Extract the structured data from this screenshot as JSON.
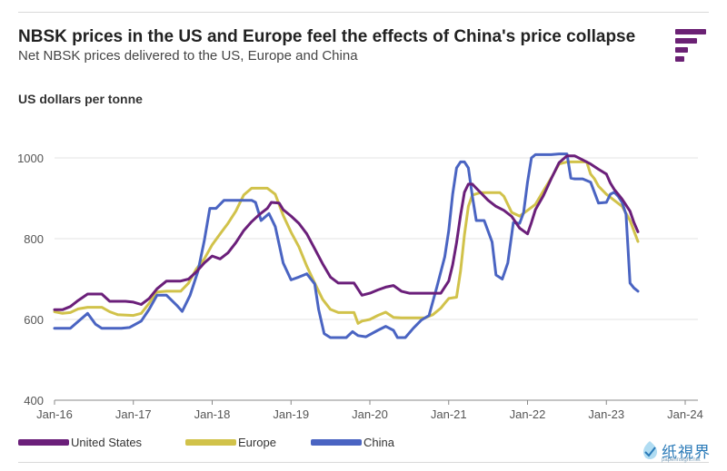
{
  "title": "NBSK prices in the US and Europe feel the effects of China's price collapse",
  "subtitle": "Net NBSK prices delivered to the US, Europe and China",
  "logo": {
    "icon": "brand-logo-icon",
    "color": "#6b2174"
  },
  "watermark": {
    "text": "纸視界",
    "subtext": "paperinsight.net",
    "icon": "watermark-logo-icon"
  },
  "chart_data": {
    "type": "line",
    "title": "NBSK prices in the US and Europe feel the effects of China's price collapse",
    "ylabel": "US dollars per tonne",
    "xlabel": "",
    "ylim": [
      400,
      1000
    ],
    "xlim": [
      2016.0,
      2024.0
    ],
    "grid": "horizontal",
    "yticks": [
      400,
      600,
      800,
      1000
    ],
    "xticks": [
      {
        "label": "Jan-16",
        "x": 2016
      },
      {
        "label": "Jan-17",
        "x": 2017
      },
      {
        "label": "Jan-18",
        "x": 2018
      },
      {
        "label": "Jan-19",
        "x": 2019
      },
      {
        "label": "Jan-20",
        "x": 2020
      },
      {
        "label": "Jan-21",
        "x": 2021
      },
      {
        "label": "Jan-22",
        "x": 2022
      },
      {
        "label": "Jan-23",
        "x": 2023
      },
      {
        "label": "Jan-24",
        "x": 2024
      }
    ],
    "legend_position": "bottom",
    "series": [
      {
        "name": "United States",
        "color": "#6b1f7a",
        "points": [
          [
            2016.0,
            624
          ],
          [
            2016.1,
            624
          ],
          [
            2016.2,
            632
          ],
          [
            2016.3,
            647
          ],
          [
            2016.42,
            663
          ],
          [
            2016.6,
            663
          ],
          [
            2016.7,
            645
          ],
          [
            2016.9,
            645
          ],
          [
            2017.0,
            643
          ],
          [
            2017.1,
            637
          ],
          [
            2017.2,
            652
          ],
          [
            2017.3,
            676
          ],
          [
            2017.42,
            695
          ],
          [
            2017.6,
            695
          ],
          [
            2017.7,
            700
          ],
          [
            2017.8,
            718
          ],
          [
            2017.9,
            740
          ],
          [
            2018.0,
            757
          ],
          [
            2018.1,
            750
          ],
          [
            2018.2,
            765
          ],
          [
            2018.3,
            790
          ],
          [
            2018.4,
            820
          ],
          [
            2018.5,
            842
          ],
          [
            2018.6,
            860
          ],
          [
            2018.7,
            875
          ],
          [
            2018.75,
            890
          ],
          [
            2018.85,
            888
          ],
          [
            2018.9,
            872
          ],
          [
            2019.0,
            856
          ],
          [
            2019.1,
            838
          ],
          [
            2019.2,
            812
          ],
          [
            2019.3,
            775
          ],
          [
            2019.4,
            738
          ],
          [
            2019.5,
            705
          ],
          [
            2019.6,
            690
          ],
          [
            2019.8,
            690
          ],
          [
            2019.9,
            660
          ],
          [
            2020.0,
            665
          ],
          [
            2020.1,
            673
          ],
          [
            2020.2,
            680
          ],
          [
            2020.3,
            684
          ],
          [
            2020.4,
            670
          ],
          [
            2020.5,
            665
          ],
          [
            2020.75,
            665
          ],
          [
            2020.9,
            665
          ],
          [
            2020.95,
            680
          ],
          [
            2021.0,
            695
          ],
          [
            2021.05,
            735
          ],
          [
            2021.1,
            790
          ],
          [
            2021.15,
            858
          ],
          [
            2021.2,
            915
          ],
          [
            2021.25,
            935
          ],
          [
            2021.3,
            935
          ],
          [
            2021.35,
            925
          ],
          [
            2021.5,
            895
          ],
          [
            2021.6,
            880
          ],
          [
            2021.7,
            870
          ],
          [
            2021.8,
            855
          ],
          [
            2021.9,
            826
          ],
          [
            2022.0,
            812
          ],
          [
            2022.05,
            840
          ],
          [
            2022.1,
            872
          ],
          [
            2022.2,
            906
          ],
          [
            2022.3,
            948
          ],
          [
            2022.4,
            988
          ],
          [
            2022.5,
            1005
          ],
          [
            2022.6,
            1005
          ],
          [
            2022.7,
            995
          ],
          [
            2022.8,
            985
          ],
          [
            2022.9,
            972
          ],
          [
            2023.0,
            960
          ],
          [
            2023.05,
            938
          ],
          [
            2023.1,
            922
          ],
          [
            2023.15,
            910
          ],
          [
            2023.2,
            898
          ],
          [
            2023.3,
            868
          ],
          [
            2023.35,
            840
          ],
          [
            2023.4,
            817
          ]
        ]
      },
      {
        "name": "Europe",
        "color": "#d1c24a",
        "points": [
          [
            2016.0,
            619
          ],
          [
            2016.1,
            615
          ],
          [
            2016.2,
            617
          ],
          [
            2016.3,
            626
          ],
          [
            2016.42,
            630
          ],
          [
            2016.6,
            630
          ],
          [
            2016.7,
            619
          ],
          [
            2016.8,
            612
          ],
          [
            2017.0,
            610
          ],
          [
            2017.1,
            615
          ],
          [
            2017.2,
            640
          ],
          [
            2017.3,
            668
          ],
          [
            2017.42,
            670
          ],
          [
            2017.6,
            670
          ],
          [
            2017.7,
            690
          ],
          [
            2017.8,
            725
          ],
          [
            2017.9,
            750
          ],
          [
            2018.0,
            785
          ],
          [
            2018.1,
            812
          ],
          [
            2018.2,
            838
          ],
          [
            2018.3,
            868
          ],
          [
            2018.4,
            908
          ],
          [
            2018.5,
            925
          ],
          [
            2018.6,
            925
          ],
          [
            2018.7,
            925
          ],
          [
            2018.8,
            910
          ],
          [
            2018.9,
            858
          ],
          [
            2019.0,
            816
          ],
          [
            2019.1,
            780
          ],
          [
            2019.2,
            732
          ],
          [
            2019.3,
            690
          ],
          [
            2019.4,
            650
          ],
          [
            2019.5,
            625
          ],
          [
            2019.6,
            617
          ],
          [
            2019.8,
            617
          ],
          [
            2019.85,
            590
          ],
          [
            2019.9,
            596
          ],
          [
            2020.0,
            600
          ],
          [
            2020.1,
            610
          ],
          [
            2020.2,
            618
          ],
          [
            2020.3,
            605
          ],
          [
            2020.4,
            604
          ],
          [
            2020.7,
            604
          ],
          [
            2020.8,
            612
          ],
          [
            2020.9,
            628
          ],
          [
            2020.95,
            640
          ],
          [
            2021.0,
            652
          ],
          [
            2021.1,
            655
          ],
          [
            2021.15,
            720
          ],
          [
            2021.2,
            810
          ],
          [
            2021.25,
            880
          ],
          [
            2021.3,
            908
          ],
          [
            2021.4,
            914
          ],
          [
            2021.5,
            914
          ],
          [
            2021.65,
            914
          ],
          [
            2021.7,
            905
          ],
          [
            2021.8,
            865
          ],
          [
            2021.9,
            856
          ],
          [
            2022.0,
            870
          ],
          [
            2022.1,
            885
          ],
          [
            2022.2,
            918
          ],
          [
            2022.3,
            950
          ],
          [
            2022.4,
            985
          ],
          [
            2022.5,
            990
          ],
          [
            2022.65,
            990
          ],
          [
            2022.75,
            990
          ],
          [
            2022.8,
            960
          ],
          [
            2022.85,
            948
          ],
          [
            2022.9,
            930
          ],
          [
            2023.0,
            910
          ],
          [
            2023.1,
            895
          ],
          [
            2023.2,
            880
          ],
          [
            2023.3,
            845
          ],
          [
            2023.4,
            793
          ]
        ]
      },
      {
        "name": "China",
        "color": "#4a64c2",
        "points": [
          [
            2016.0,
            578
          ],
          [
            2016.2,
            578
          ],
          [
            2016.3,
            595
          ],
          [
            2016.42,
            615
          ],
          [
            2016.52,
            588
          ],
          [
            2016.6,
            578
          ],
          [
            2016.7,
            578
          ],
          [
            2016.85,
            578
          ],
          [
            2016.95,
            580
          ],
          [
            2017.1,
            596
          ],
          [
            2017.2,
            625
          ],
          [
            2017.3,
            660
          ],
          [
            2017.42,
            660
          ],
          [
            2017.55,
            635
          ],
          [
            2017.62,
            620
          ],
          [
            2017.72,
            660
          ],
          [
            2017.82,
            720
          ],
          [
            2017.9,
            795
          ],
          [
            2017.97,
            875
          ],
          [
            2018.05,
            875
          ],
          [
            2018.15,
            895
          ],
          [
            2018.25,
            895
          ],
          [
            2018.5,
            895
          ],
          [
            2018.55,
            890
          ],
          [
            2018.62,
            845
          ],
          [
            2018.72,
            862
          ],
          [
            2018.8,
            830
          ],
          [
            2018.9,
            740
          ],
          [
            2019.0,
            698
          ],
          [
            2019.1,
            705
          ],
          [
            2019.2,
            713
          ],
          [
            2019.3,
            688
          ],
          [
            2019.35,
            625
          ],
          [
            2019.42,
            565
          ],
          [
            2019.5,
            555
          ],
          [
            2019.7,
            555
          ],
          [
            2019.78,
            570
          ],
          [
            2019.85,
            560
          ],
          [
            2019.95,
            557
          ],
          [
            2020.1,
            573
          ],
          [
            2020.2,
            583
          ],
          [
            2020.3,
            573
          ],
          [
            2020.35,
            555
          ],
          [
            2020.45,
            555
          ],
          [
            2020.55,
            578
          ],
          [
            2020.65,
            598
          ],
          [
            2020.75,
            610
          ],
          [
            2020.85,
            680
          ],
          [
            2020.95,
            755
          ],
          [
            2021.0,
            820
          ],
          [
            2021.05,
            910
          ],
          [
            2021.1,
            975
          ],
          [
            2021.15,
            990
          ],
          [
            2021.2,
            990
          ],
          [
            2021.25,
            975
          ],
          [
            2021.3,
            905
          ],
          [
            2021.35,
            845
          ],
          [
            2021.45,
            845
          ],
          [
            2021.55,
            792
          ],
          [
            2021.6,
            710
          ],
          [
            2021.68,
            700
          ],
          [
            2021.75,
            740
          ],
          [
            2021.82,
            840
          ],
          [
            2021.9,
            838
          ],
          [
            2021.95,
            865
          ],
          [
            2022.0,
            940
          ],
          [
            2022.05,
            1000
          ],
          [
            2022.1,
            1008
          ],
          [
            2022.3,
            1008
          ],
          [
            2022.4,
            1010
          ],
          [
            2022.5,
            1010
          ],
          [
            2022.55,
            950
          ],
          [
            2022.6,
            948
          ],
          [
            2022.7,
            948
          ],
          [
            2022.8,
            940
          ],
          [
            2022.9,
            888
          ],
          [
            2023.0,
            890
          ],
          [
            2023.05,
            910
          ],
          [
            2023.1,
            915
          ],
          [
            2023.15,
            905
          ],
          [
            2023.2,
            890
          ],
          [
            2023.25,
            860
          ],
          [
            2023.3,
            690
          ],
          [
            2023.35,
            678
          ],
          [
            2023.4,
            670
          ]
        ]
      }
    ]
  }
}
